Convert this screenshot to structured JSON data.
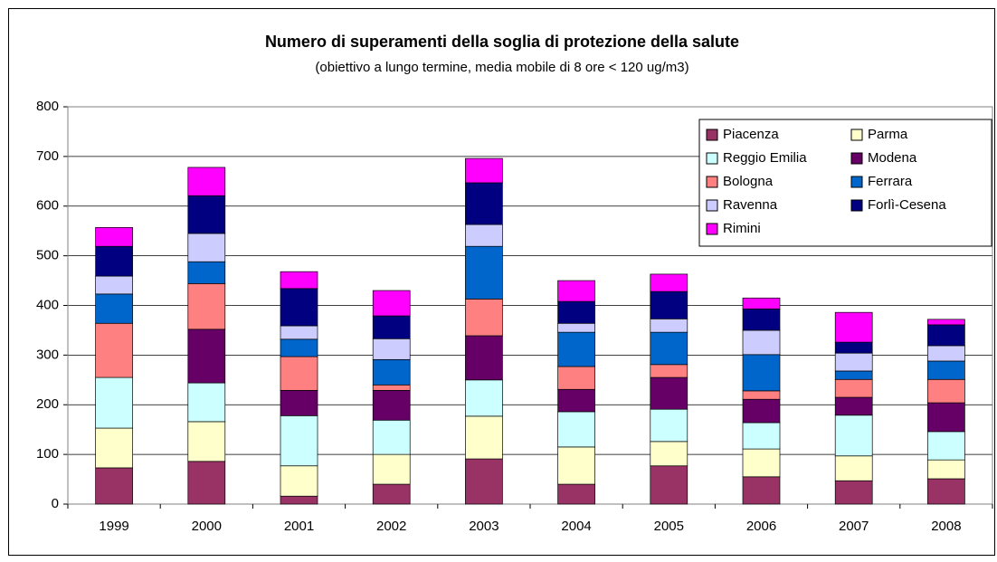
{
  "chart_data": {
    "type": "stacked_bar",
    "title": "Numero di superamenti della soglia di protezione della salute",
    "subtitle": "(obiettivo a lungo termine, media mobile di 8 ore < 120 ug/m3)",
    "categories": [
      "1999",
      "2000",
      "2001",
      "2002",
      "2003",
      "2004",
      "2005",
      "2006",
      "2007",
      "2008"
    ],
    "series": [
      {
        "name": "Piacenza",
        "color": "#993366",
        "values": [
          73,
          86,
          16,
          40,
          91,
          40,
          77,
          55,
          47,
          51
        ]
      },
      {
        "name": "Parma",
        "color": "#ffffcc",
        "values": [
          80,
          80,
          61,
          60,
          86,
          75,
          49,
          56,
          50,
          38
        ]
      },
      {
        "name": "Reggio Emilia",
        "color": "#ccffff",
        "values": [
          102,
          78,
          101,
          69,
          73,
          71,
          65,
          53,
          82,
          57
        ]
      },
      {
        "name": "Modena",
        "color": "#660066",
        "values": [
          0,
          108,
          51,
          60,
          89,
          45,
          64,
          47,
          36,
          58
        ]
      },
      {
        "name": "Bologna",
        "color": "#ff8080",
        "values": [
          109,
          92,
          68,
          11,
          74,
          46,
          26,
          17,
          36,
          47
        ]
      },
      {
        "name": "Ferrara",
        "color": "#0066cc",
        "values": [
          59,
          44,
          35,
          51,
          106,
          69,
          65,
          73,
          17,
          37
        ]
      },
      {
        "name": "Ravenna",
        "color": "#ccccff",
        "values": [
          36,
          57,
          27,
          42,
          44,
          18,
          27,
          49,
          36,
          31
        ]
      },
      {
        "name": "Forlì-Cesena",
        "color": "#000080",
        "values": [
          60,
          76,
          75,
          46,
          84,
          44,
          55,
          43,
          22,
          42
        ]
      },
      {
        "name": "Rimini",
        "color": "#ff00ff",
        "values": [
          38,
          57,
          34,
          51,
          49,
          42,
          35,
          22,
          60,
          11
        ]
      }
    ],
    "ylim": [
      0,
      800
    ],
    "yticks": [
      0,
      100,
      200,
      300,
      400,
      500,
      600,
      700,
      800
    ],
    "grid": true,
    "legend": "top-right"
  }
}
